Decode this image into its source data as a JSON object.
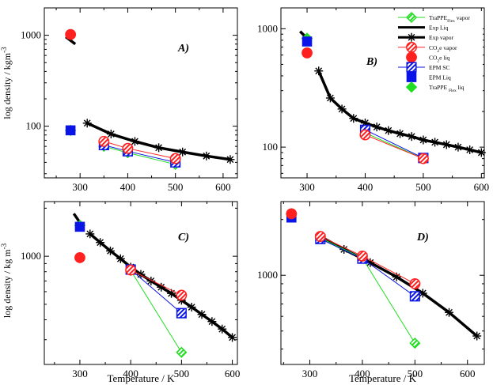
{
  "chart_data": [
    {
      "type": "scatter",
      "panel_label": "A)",
      "xlabel": "",
      "ylabel": "log density   /  kgm",
      "ylabel_sup": "-3",
      "yscale": "log",
      "xlim": [
        225,
        630
      ],
      "ylim": [
        27,
        2000
      ],
      "xticks": [
        300,
        400,
        500,
        600
      ],
      "yticks": [
        100,
        1000
      ],
      "ytick_labels": [
        "100",
        "1000"
      ],
      "series": [
        {
          "name": "Exp Liq",
          "style": "exp-liq",
          "x": [
            270,
            290
          ],
          "y": [
            960,
            800
          ]
        },
        {
          "name": "Exp vapor",
          "style": "exp-vap",
          "x": [
            315,
            365,
            415,
            465,
            515,
            565,
            615
          ],
          "y": [
            108,
            82,
            68,
            58,
            52,
            47,
            43
          ]
        },
        {
          "name": "CO2e vapor",
          "style": "co2e-vap",
          "x": [
            350,
            400,
            500
          ],
          "y": [
            68,
            57,
            44
          ]
        },
        {
          "name": "CO2e liq",
          "style": "co2e-liq",
          "x": [
            280
          ],
          "y": [
            1020
          ]
        },
        {
          "name": "EPM SC",
          "style": "epm-sc",
          "x": [
            350,
            400,
            500
          ],
          "y": [
            62,
            53,
            40
          ]
        },
        {
          "name": "EPM Liq",
          "style": "epm-liq",
          "x": [
            280
          ],
          "y": [
            90
          ]
        },
        {
          "name": "TraPPE Flex vapor",
          "style": "trappe-vap",
          "x": [
            350,
            400,
            500
          ],
          "y": [
            60,
            51,
            38
          ]
        },
        {
          "name": "TraPPE Flex liq",
          "style": "trappe-liq",
          "x": [
            280
          ],
          "y": [
            90
          ]
        }
      ]
    },
    {
      "type": "scatter",
      "panel_label": "B)",
      "xlabel": "",
      "ylabel": "",
      "yscale": "log",
      "xlim": [
        255,
        605
      ],
      "ylim": [
        55,
        1500
      ],
      "xticks": [
        300,
        400,
        500,
        600
      ],
      "yticks": [
        100,
        1000
      ],
      "ytick_labels": [
        "100",
        "1000"
      ],
      "series": [
        {
          "name": "Exp Liq",
          "style": "exp-liq",
          "x": [
            288,
            300
          ],
          "y": [
            950,
            830
          ]
        },
        {
          "name": "Exp vapor",
          "style": "exp-vap",
          "x": [
            320,
            340,
            360,
            380,
            400,
            420,
            440,
            460,
            480,
            500,
            520,
            540,
            560,
            580,
            600
          ],
          "y": [
            440,
            260,
            210,
            175,
            160,
            148,
            138,
            130,
            123,
            115,
            110,
            105,
            100,
            95,
            90
          ]
        },
        {
          "name": "CO2e vapor",
          "style": "co2e-vap",
          "x": [
            400,
            500
          ],
          "y": [
            127,
            80
          ]
        },
        {
          "name": "CO2e liq",
          "style": "co2e-liq",
          "x": [
            300
          ],
          "y": [
            625
          ]
        },
        {
          "name": "EPM SC",
          "style": "epm-sc",
          "x": [
            400,
            500
          ],
          "y": [
            140,
            81
          ]
        },
        {
          "name": "EPM Liq",
          "style": "epm-liq",
          "x": [
            300
          ],
          "y": [
            780
          ]
        },
        {
          "name": "TraPPE Flex vapor",
          "style": "trappe-vap",
          "x": [
            400,
            500
          ],
          "y": [
            132,
            80
          ]
        },
        {
          "name": "TraPPE Flex liq",
          "style": "trappe-liq",
          "x": [
            300
          ],
          "y": [
            830
          ]
        }
      ],
      "legend": {
        "position": "top-right",
        "entries": [
          {
            "style": "trappe-vap",
            "label": "TraPPE",
            "sub": "Flex",
            "suffix": " vapor"
          },
          {
            "style": "exp-liq",
            "label": "Exp Liq"
          },
          {
            "style": "exp-vap",
            "label": "Exp vapor"
          },
          {
            "style": "co2e-vap",
            "label": "CO",
            "sub": "2",
            "suffix": "e vapor"
          },
          {
            "style": "co2e-liq",
            "label": "CO",
            "sub": "2",
            "suffix": "e liq"
          },
          {
            "style": "epm-sc",
            "label": "EPM  SC"
          },
          {
            "style": "epm-liq",
            "label": "EPM  Liq"
          },
          {
            "style": "trappe-liq",
            "label": "TraPPE ",
            "sub": "Flex",
            "suffix": " liq"
          }
        ]
      }
    },
    {
      "type": "scatter",
      "panel_label": "C)",
      "xlabel": "Temperature   /  K",
      "ylabel": "log density    /    kg m",
      "ylabel_sup": "-3",
      "yscale": "log",
      "xlim": [
        230,
        610
      ],
      "ylim": [
        210,
        2200
      ],
      "xticks": [
        300,
        400,
        500,
        600
      ],
      "yticks": [
        1000
      ],
      "ytick_labels": [
        "1000"
      ],
      "series": [
        {
          "name": "Exp Liq",
          "style": "exp-liq",
          "x": [
            288,
            304
          ],
          "y": [
            1850,
            1560
          ]
        },
        {
          "name": "Exp vapor",
          "style": "exp-vap",
          "x": [
            320,
            340,
            360,
            380,
            400,
            420,
            440,
            460,
            480,
            500,
            520,
            540,
            560,
            580,
            600
          ],
          "y": [
            1380,
            1220,
            1080,
            965,
            855,
            770,
            700,
            640,
            585,
            530,
            480,
            432,
            390,
            350,
            310
          ]
        },
        {
          "name": "CO2e vapor",
          "style": "co2e-vap",
          "x": [
            400,
            500
          ],
          "y": [
            820,
            570
          ]
        },
        {
          "name": "CO2e liq",
          "style": "co2e-liq",
          "x": [
            300
          ],
          "y": [
            980
          ]
        },
        {
          "name": "EPM SC",
          "style": "epm-sc",
          "x": [
            400,
            500
          ],
          "y": [
            825,
            440
          ]
        },
        {
          "name": "EPM Liq",
          "style": "epm-liq",
          "x": [
            300
          ],
          "y": [
            1530
          ]
        },
        {
          "name": "TraPPE Flex vapor",
          "style": "trappe-vap",
          "x": [
            400,
            500
          ],
          "y": [
            815,
            250
          ]
        },
        {
          "name": "TraPPE Flex liq",
          "style": "trappe-liq",
          "x": [
            300
          ],
          "y": [
            1560
          ]
        }
      ]
    },
    {
      "type": "scatter",
      "panel_label": "D)",
      "xlabel": "Temperature   /  K",
      "ylabel": "",
      "yscale": "log",
      "xlim": [
        245,
        632
      ],
      "ylim": [
        330,
        2500
      ],
      "xticks": [
        300,
        400,
        500,
        600
      ],
      "yticks": [
        1000
      ],
      "ytick_labels": [
        "1000"
      ],
      "series": [
        {
          "name": "Exp Liq",
          "style": "exp-liq",
          "x": [
            265
          ],
          "y": [
            2200
          ]
        },
        {
          "name": "Exp vapor",
          "style": "exp-vap",
          "x": [
            320,
            365,
            415,
            465,
            515,
            565,
            618
          ],
          "y": [
            1620,
            1380,
            1170,
            980,
            800,
            630,
            470
          ]
        },
        {
          "name": "CO2e vapor",
          "style": "co2e-vap",
          "x": [
            320,
            400,
            500
          ],
          "y": [
            1620,
            1270,
            900
          ]
        },
        {
          "name": "CO2e liq",
          "style": "co2e-liq",
          "x": [
            265
          ],
          "y": [
            2150
          ]
        },
        {
          "name": "EPM SC",
          "style": "epm-sc",
          "x": [
            320,
            400,
            500
          ],
          "y": [
            1570,
            1230,
            770
          ]
        },
        {
          "name": "EPM Liq",
          "style": "epm-liq",
          "x": [
            265
          ],
          "y": [
            2050
          ]
        },
        {
          "name": "TraPPE Flex vapor",
          "style": "trappe-vap",
          "x": [
            320,
            400,
            500
          ],
          "y": [
            1590,
            1240,
            430
          ]
        },
        {
          "name": "TraPPE Flex liq",
          "style": "trappe-liq",
          "x": [
            265
          ],
          "y": [
            2150
          ]
        }
      ]
    }
  ],
  "colors": {
    "red": "#ff2020",
    "blue": "#0a14e6",
    "green": "#22dd22",
    "black": "#000000"
  }
}
